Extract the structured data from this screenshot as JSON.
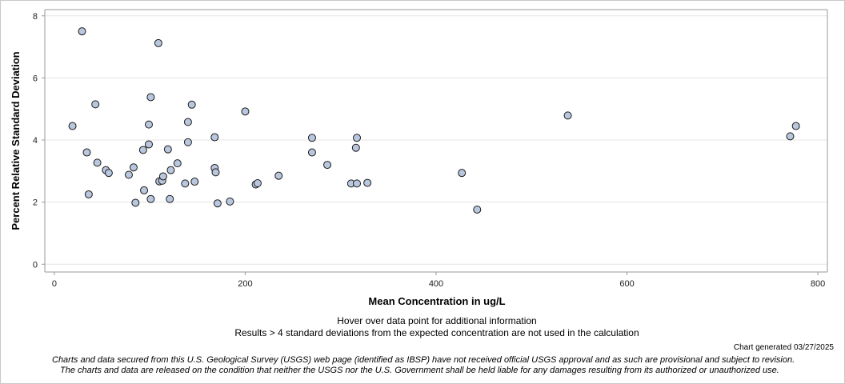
{
  "chart_data": {
    "type": "scatter",
    "title": "",
    "xlabel": "Mean Concentration in ug/L",
    "ylabel": "Percent Relative Standard Deviation",
    "xlim": [
      -10,
      810
    ],
    "ylim": [
      -0.25,
      8.2
    ],
    "x_ticks": [
      0,
      200,
      400,
      600,
      800
    ],
    "y_ticks": [
      0,
      2,
      4,
      6,
      8
    ],
    "grid": true,
    "point_color": "#b9c7de",
    "points": [
      {
        "x": 19,
        "y": 4.45
      },
      {
        "x": 29,
        "y": 7.5
      },
      {
        "x": 34,
        "y": 3.6
      },
      {
        "x": 36,
        "y": 2.25
      },
      {
        "x": 43,
        "y": 5.15
      },
      {
        "x": 45,
        "y": 3.27
      },
      {
        "x": 54,
        "y": 3.03
      },
      {
        "x": 57,
        "y": 2.94
      },
      {
        "x": 78,
        "y": 2.88
      },
      {
        "x": 83,
        "y": 3.12
      },
      {
        "x": 85,
        "y": 1.98
      },
      {
        "x": 93,
        "y": 3.68
      },
      {
        "x": 94,
        "y": 2.38
      },
      {
        "x": 99,
        "y": 4.5
      },
      {
        "x": 99,
        "y": 3.86
      },
      {
        "x": 101,
        "y": 5.38
      },
      {
        "x": 101,
        "y": 2.1
      },
      {
        "x": 109,
        "y": 7.12
      },
      {
        "x": 110,
        "y": 2.67
      },
      {
        "x": 113,
        "y": 2.69
      },
      {
        "x": 114,
        "y": 2.83
      },
      {
        "x": 119,
        "y": 3.7
      },
      {
        "x": 121,
        "y": 2.1
      },
      {
        "x": 122,
        "y": 3.03
      },
      {
        "x": 129,
        "y": 3.25
      },
      {
        "x": 137,
        "y": 2.6
      },
      {
        "x": 140,
        "y": 4.58
      },
      {
        "x": 140,
        "y": 3.93
      },
      {
        "x": 144,
        "y": 5.14
      },
      {
        "x": 147,
        "y": 2.66
      },
      {
        "x": 168,
        "y": 4.09
      },
      {
        "x": 168,
        "y": 3.1
      },
      {
        "x": 169,
        "y": 2.96
      },
      {
        "x": 171,
        "y": 1.96
      },
      {
        "x": 184,
        "y": 2.02
      },
      {
        "x": 200,
        "y": 4.92
      },
      {
        "x": 211,
        "y": 2.57
      },
      {
        "x": 213,
        "y": 2.61
      },
      {
        "x": 235,
        "y": 2.85
      },
      {
        "x": 270,
        "y": 4.07
      },
      {
        "x": 270,
        "y": 3.6
      },
      {
        "x": 286,
        "y": 3.2
      },
      {
        "x": 311,
        "y": 2.6
      },
      {
        "x": 316,
        "y": 3.75
      },
      {
        "x": 317,
        "y": 4.07
      },
      {
        "x": 317,
        "y": 2.6
      },
      {
        "x": 328,
        "y": 2.62
      },
      {
        "x": 427,
        "y": 2.94
      },
      {
        "x": 443,
        "y": 1.76
      },
      {
        "x": 538,
        "y": 4.79
      },
      {
        "x": 771,
        "y": 4.12
      },
      {
        "x": 777,
        "y": 4.45
      }
    ]
  },
  "notes": {
    "hover": "Hover over data point for additional information",
    "results": "Results > 4 standard deviations from the expected concentration are not used in the calculation",
    "generated": "Chart generated 03/27/2025",
    "disclaimer_line1": "Charts and data secured from this U.S. Geological Survey (USGS) web page (identified as IBSP) have not received official USGS approval and as such are provisional and subject to revision.",
    "disclaimer_line2": "The charts and data are released on the condition that neither the USGS nor the U.S. Government shall be held liable for any damages resulting from its authorized or unauthorized use."
  }
}
